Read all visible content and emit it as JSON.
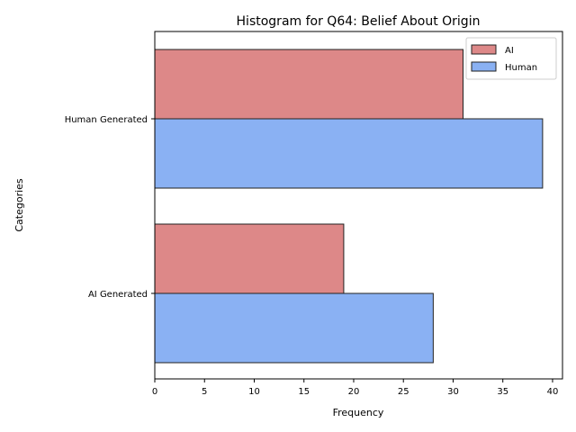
{
  "chart_data": {
    "type": "bar",
    "orientation": "horizontal",
    "title": "Histogram for Q64: Belief About Origin",
    "xlabel": "Frequency",
    "ylabel": "Categories",
    "categories": [
      "AI Generated",
      "Human Generated"
    ],
    "series": [
      {
        "name": "AI",
        "values": [
          19,
          31
        ],
        "color": "#d46a6a"
      },
      {
        "name": "Human",
        "values": [
          28,
          39
        ],
        "color": "#6d9ef0"
      }
    ],
    "xlim": [
      0,
      41
    ],
    "xticks": [
      0,
      5,
      10,
      15,
      20,
      25,
      30,
      35,
      40
    ],
    "grid": false,
    "legend_position": "top-right"
  }
}
